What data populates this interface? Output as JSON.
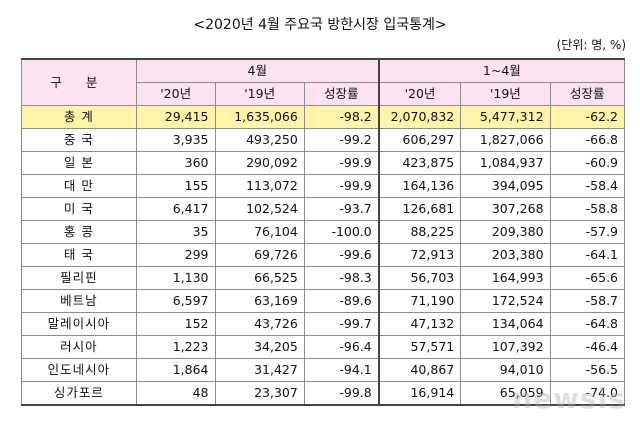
{
  "title": "<2020년 4월 주요국 방한시장 입국통계>",
  "unit": "(단위: 명, %)",
  "table": {
    "division_header": "구 분",
    "group_april": "4월",
    "group_jan_apr": "1~4월",
    "sub_headers": [
      "'20년",
      "'19년",
      "성장률",
      "'20년",
      "'19년",
      "성장률"
    ],
    "rows": [
      {
        "name": "총 계",
        "total": true,
        "values": [
          "29,415",
          "1,635,066",
          "-98.2",
          "2,070,832",
          "5,477,312",
          "-62.2"
        ]
      },
      {
        "name": "중 국",
        "values": [
          "3,935",
          "493,250",
          "-99.2",
          "606,297",
          "1,827,066",
          "-66.8"
        ]
      },
      {
        "name": "일 본",
        "values": [
          "360",
          "290,092",
          "-99.9",
          "423,875",
          "1,084,937",
          "-60.9"
        ]
      },
      {
        "name": "대 만",
        "values": [
          "155",
          "113,072",
          "-99.9",
          "164,136",
          "394,095",
          "-58.4"
        ]
      },
      {
        "name": "미 국",
        "values": [
          "6,417",
          "102,524",
          "-93.7",
          "126,681",
          "307,268",
          "-58.8"
        ]
      },
      {
        "name": "홍 콩",
        "values": [
          "35",
          "76,104",
          "-100.0",
          "88,225",
          "209,380",
          "-57.9"
        ]
      },
      {
        "name": "태 국",
        "values": [
          "299",
          "69,726",
          "-99.6",
          "72,913",
          "203,380",
          "-64.1"
        ]
      },
      {
        "name": "필리핀",
        "values": [
          "1,130",
          "66,525",
          "-98.3",
          "56,703",
          "164,993",
          "-65.6"
        ]
      },
      {
        "name": "베트남",
        "values": [
          "6,597",
          "63,169",
          "-89.6",
          "71,190",
          "172,524",
          "-58.7"
        ]
      },
      {
        "name": "말레이시아",
        "values": [
          "152",
          "43,726",
          "-99.7",
          "47,132",
          "134,064",
          "-64.8"
        ]
      },
      {
        "name": "러시아",
        "values": [
          "1,223",
          "34,205",
          "-96.4",
          "57,571",
          "107,392",
          "-46.4"
        ]
      },
      {
        "name": "인도네시아",
        "values": [
          "1,864",
          "31,427",
          "-94.1",
          "40,867",
          "94,010",
          "-56.5"
        ]
      },
      {
        "name": "싱가포르",
        "values": [
          "48",
          "23,307",
          "-99.8",
          "16,914",
          "65,059",
          "-74.0"
        ]
      }
    ]
  },
  "watermark": "newsis",
  "colors": {
    "header_bg": "#fde3ef",
    "total_bg": "#fff4a8",
    "grid": "#8c8c8c"
  }
}
